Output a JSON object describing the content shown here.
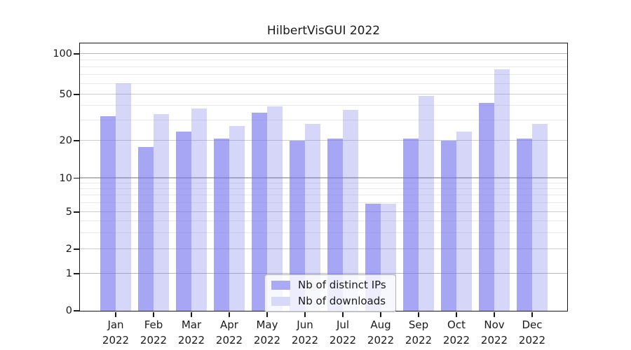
{
  "title": "HilbertVisGUI 2022",
  "legend": {
    "items": [
      {
        "label": "Nb of distinct IPs",
        "color": "#a9a9f5"
      },
      {
        "label": "Nb of downloads",
        "color": "#d8d8f8"
      }
    ]
  },
  "chart_data": {
    "type": "bar",
    "title": "HilbertVisGUI 2022",
    "xlabel": "",
    "ylabel": "",
    "categories": [
      "Jan 2022",
      "Feb 2022",
      "Mar 2022",
      "Apr 2022",
      "May 2022",
      "Jun 2022",
      "Jul 2022",
      "Aug 2022",
      "Sep 2022",
      "Oct 2022",
      "Nov 2022",
      "Dec 2022"
    ],
    "series": [
      {
        "name": "Nb of distinct IPs",
        "values": [
          33,
          18,
          24,
          21,
          35,
          20,
          21,
          6,
          21,
          20,
          43,
          21
        ],
        "bar_rgba": "rgba(113,112,239,0.62)",
        "legend_color": "#a9a9f5"
      },
      {
        "name": "Nb of downloads",
        "values": [
          61,
          34,
          38,
          27,
          40,
          28,
          37,
          6,
          49,
          24,
          78,
          28
        ],
        "bar_rgba": "rgba(113,112,232,0.29)",
        "legend_color": "#d8d8f8"
      }
    ],
    "ylim": [
      0,
      115
    ],
    "yticks": [
      0,
      1,
      2,
      5,
      10,
      20,
      50,
      100
    ],
    "minor_gridlines": [
      3,
      4,
      6,
      7,
      8,
      9,
      30,
      40,
      60,
      70,
      80,
      90
    ],
    "grid": "horizontal, major and minor",
    "legend_position": "inside plot, bottom center",
    "scale": {
      "type": "piecewise-log with 0 baseline (symlog-like)",
      "anchors": [
        [
          0,
          0
        ],
        [
          1,
          0.1388
        ],
        [
          2,
          0.2299
        ],
        [
          5,
          0.3698
        ],
        [
          10,
          0.4956
        ],
        [
          20,
          0.6367
        ],
        [
          50,
          0.8091
        ],
        [
          100,
          0.9602
        ]
      ]
    }
  },
  "colors": {
    "background": "#ffffff",
    "spine": "#1a1a1a",
    "text": "#1a1a1a",
    "grid_major_power10": "#b8b8b8",
    "grid_major": "#cccccc",
    "grid_minor": "#e9e9e9",
    "legend_border": "#b3b3b3",
    "legend_bg": "rgba(255,255,255,0.8)"
  }
}
